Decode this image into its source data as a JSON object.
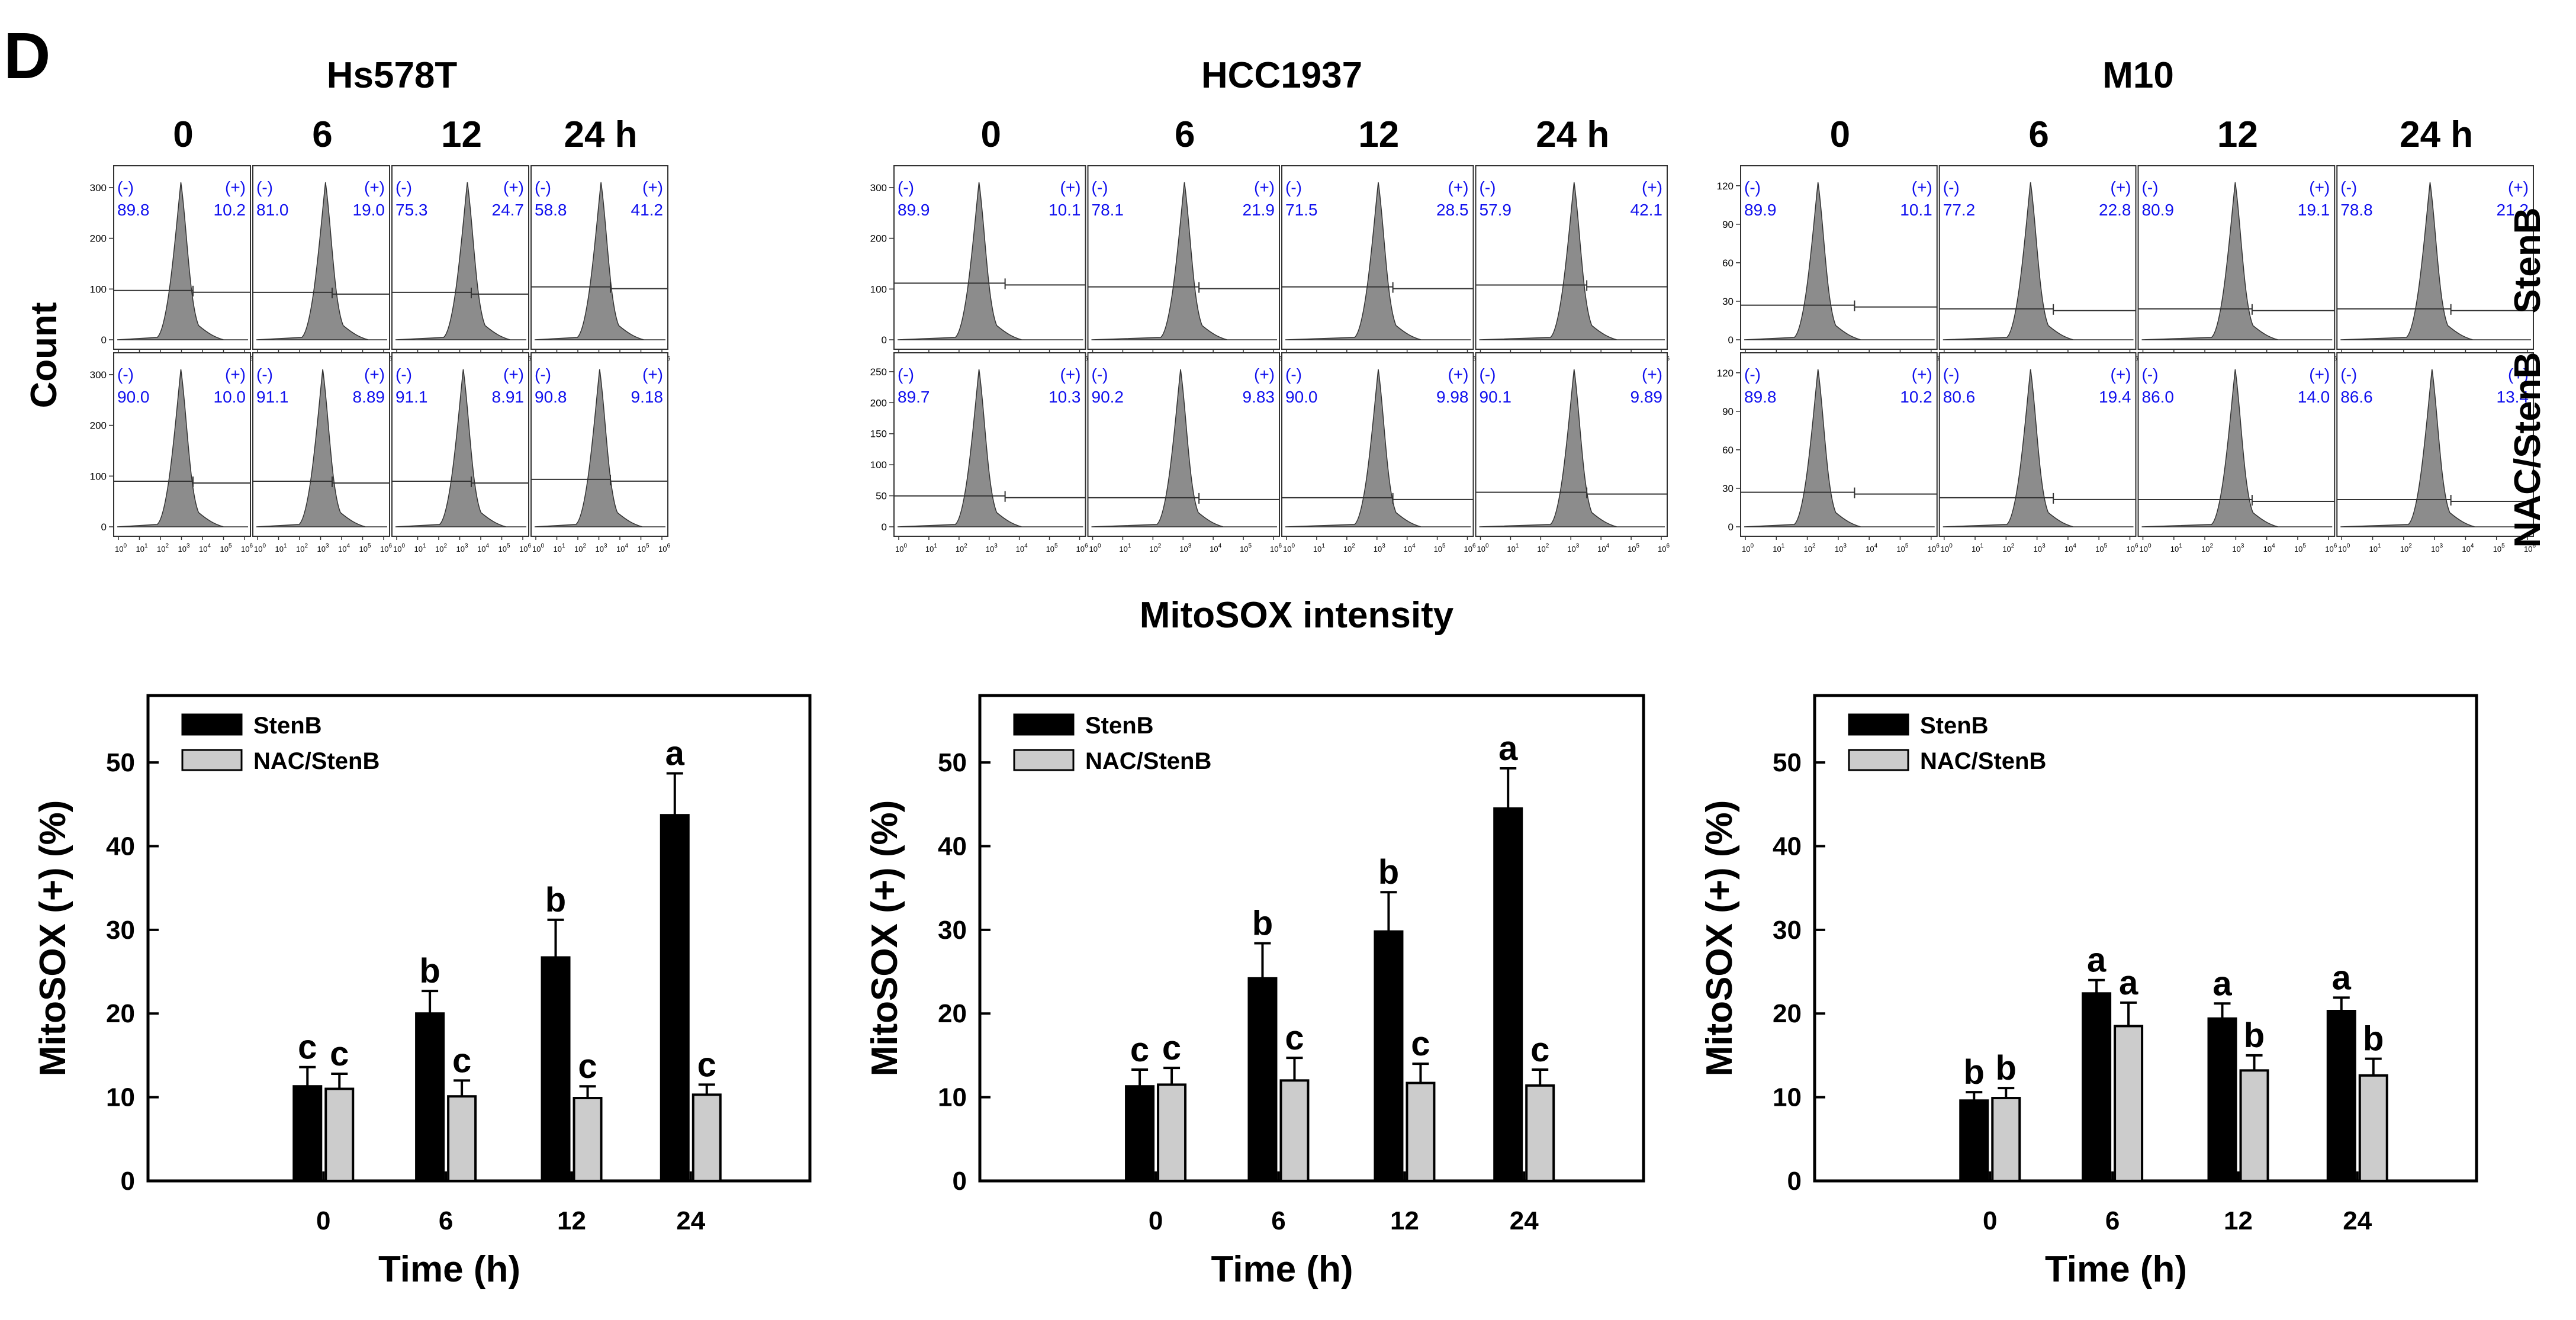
{
  "panel_label": "D",
  "flow": {
    "timepoints": [
      "0",
      "6",
      "12",
      "24 h"
    ],
    "row_labels": [
      "StenB",
      "NAC/StenB"
    ],
    "y_axis_label": "Count",
    "x_axis_label": "MitoSOX intensity",
    "gate_labels": [
      "(-)",
      "(+)"
    ],
    "x_tick_base": "10",
    "x_tick_exponents": [
      "0",
      "1",
      "2",
      "3",
      "4",
      "5",
      "6"
    ],
    "groups": [
      {
        "name": "Hs578T",
        "y_ticks": [
          [
            "0",
            "100",
            "200",
            "300"
          ],
          [
            "0",
            "100",
            "200",
            "300"
          ]
        ],
        "populations": [
          [
            [
              "89.8",
              "10.2"
            ],
            [
              "81.0",
              "19.0"
            ],
            [
              "75.3",
              "24.7"
            ],
            [
              "58.8",
              "41.2"
            ]
          ],
          [
            [
              "90.0",
              "10.0"
            ],
            [
              "91.1",
              "8.89"
            ],
            [
              "91.1",
              "8.91"
            ],
            [
              "90.8",
              "9.18"
            ]
          ]
        ]
      },
      {
        "name": "HCC1937",
        "y_ticks": [
          [
            "0",
            "100",
            "200",
            "300"
          ],
          [
            "0",
            "50",
            "100",
            "150",
            "200",
            "250"
          ]
        ],
        "populations": [
          [
            [
              "89.9",
              "10.1"
            ],
            [
              "78.1",
              "21.9"
            ],
            [
              "71.5",
              "28.5"
            ],
            [
              "57.9",
              "42.1"
            ]
          ],
          [
            [
              "89.7",
              "10.3"
            ],
            [
              "90.2",
              "9.83"
            ],
            [
              "90.0",
              "9.98"
            ],
            [
              "90.1",
              "9.89"
            ]
          ]
        ]
      },
      {
        "name": "M10",
        "y_ticks": [
          [
            "0",
            "30",
            "60",
            "90",
            "120"
          ],
          [
            "0",
            "30",
            "60",
            "90",
            "120"
          ]
        ],
        "populations": [
          [
            [
              "89.9",
              "10.1"
            ],
            [
              "77.2",
              "22.8"
            ],
            [
              "80.9",
              "19.1"
            ],
            [
              "78.8",
              "21.2"
            ]
          ],
          [
            [
              "89.8",
              "10.2"
            ],
            [
              "80.6",
              "19.4"
            ],
            [
              "86.0",
              "14.0"
            ],
            [
              "86.6",
              "13.4"
            ]
          ]
        ]
      }
    ]
  },
  "chart_data": [
    {
      "type": "bar",
      "title": "Hs578T",
      "xlabel": "Time (h)",
      "ylabel": "MitoSOX (+) (%)",
      "ylim": [
        0,
        58
      ],
      "yticks": [
        "0",
        "10",
        "20",
        "30",
        "40",
        "50"
      ],
      "categories": [
        "0",
        "6",
        "12",
        "24"
      ],
      "legend_position": "top-left",
      "series": [
        {
          "name": "StenB",
          "color": "#000000",
          "values": [
            11.3,
            20.0,
            26.7,
            43.7
          ],
          "errors": [
            2.3,
            2.7,
            4.5,
            5.0
          ],
          "letters": [
            "c",
            "b",
            "b",
            "a"
          ]
        },
        {
          "name": "NAC/StenB",
          "color": "#cccccc",
          "values": [
            11.0,
            10.1,
            9.9,
            10.3
          ],
          "errors": [
            1.8,
            1.9,
            1.4,
            1.2
          ],
          "letters": [
            "c",
            "c",
            "c",
            "c"
          ]
        }
      ]
    },
    {
      "type": "bar",
      "title": "HCC1937",
      "xlabel": "Time (h)",
      "ylabel": "MitoSOX (+) (%)",
      "ylim": [
        0,
        58
      ],
      "yticks": [
        "0",
        "10",
        "20",
        "30",
        "40",
        "50"
      ],
      "categories": [
        "0",
        "6",
        "12",
        "24"
      ],
      "legend_position": "top-left",
      "series": [
        {
          "name": "StenB",
          "color": "#000000",
          "values": [
            11.3,
            24.2,
            29.8,
            44.5
          ],
          "errors": [
            2.0,
            4.2,
            4.7,
            4.8
          ],
          "letters": [
            "c",
            "b",
            "b",
            "a"
          ]
        },
        {
          "name": "NAC/StenB",
          "color": "#cccccc",
          "values": [
            11.5,
            12.0,
            11.7,
            11.4
          ],
          "errors": [
            2.0,
            2.7,
            2.3,
            1.9
          ],
          "letters": [
            "c",
            "c",
            "c",
            "c"
          ]
        }
      ]
    },
    {
      "type": "bar",
      "title": "M10",
      "xlabel": "Time (h)",
      "ylabel": "MitoSOX (+) (%)",
      "ylim": [
        0,
        58
      ],
      "yticks": [
        "0",
        "10",
        "20",
        "30",
        "40",
        "50"
      ],
      "categories": [
        "0",
        "6",
        "12",
        "24"
      ],
      "legend_position": "top-left",
      "series": [
        {
          "name": "StenB",
          "color": "#000000",
          "values": [
            9.6,
            22.4,
            19.4,
            20.3
          ],
          "errors": [
            1.0,
            1.6,
            1.8,
            1.6
          ],
          "letters": [
            "b",
            "a",
            "a",
            "a"
          ]
        },
        {
          "name": "NAC/StenB",
          "color": "#cccccc",
          "values": [
            9.9,
            18.5,
            13.2,
            12.6
          ],
          "errors": [
            1.2,
            2.8,
            1.8,
            2.0
          ],
          "letters": [
            "b",
            "a",
            "b",
            "b"
          ]
        }
      ]
    }
  ]
}
